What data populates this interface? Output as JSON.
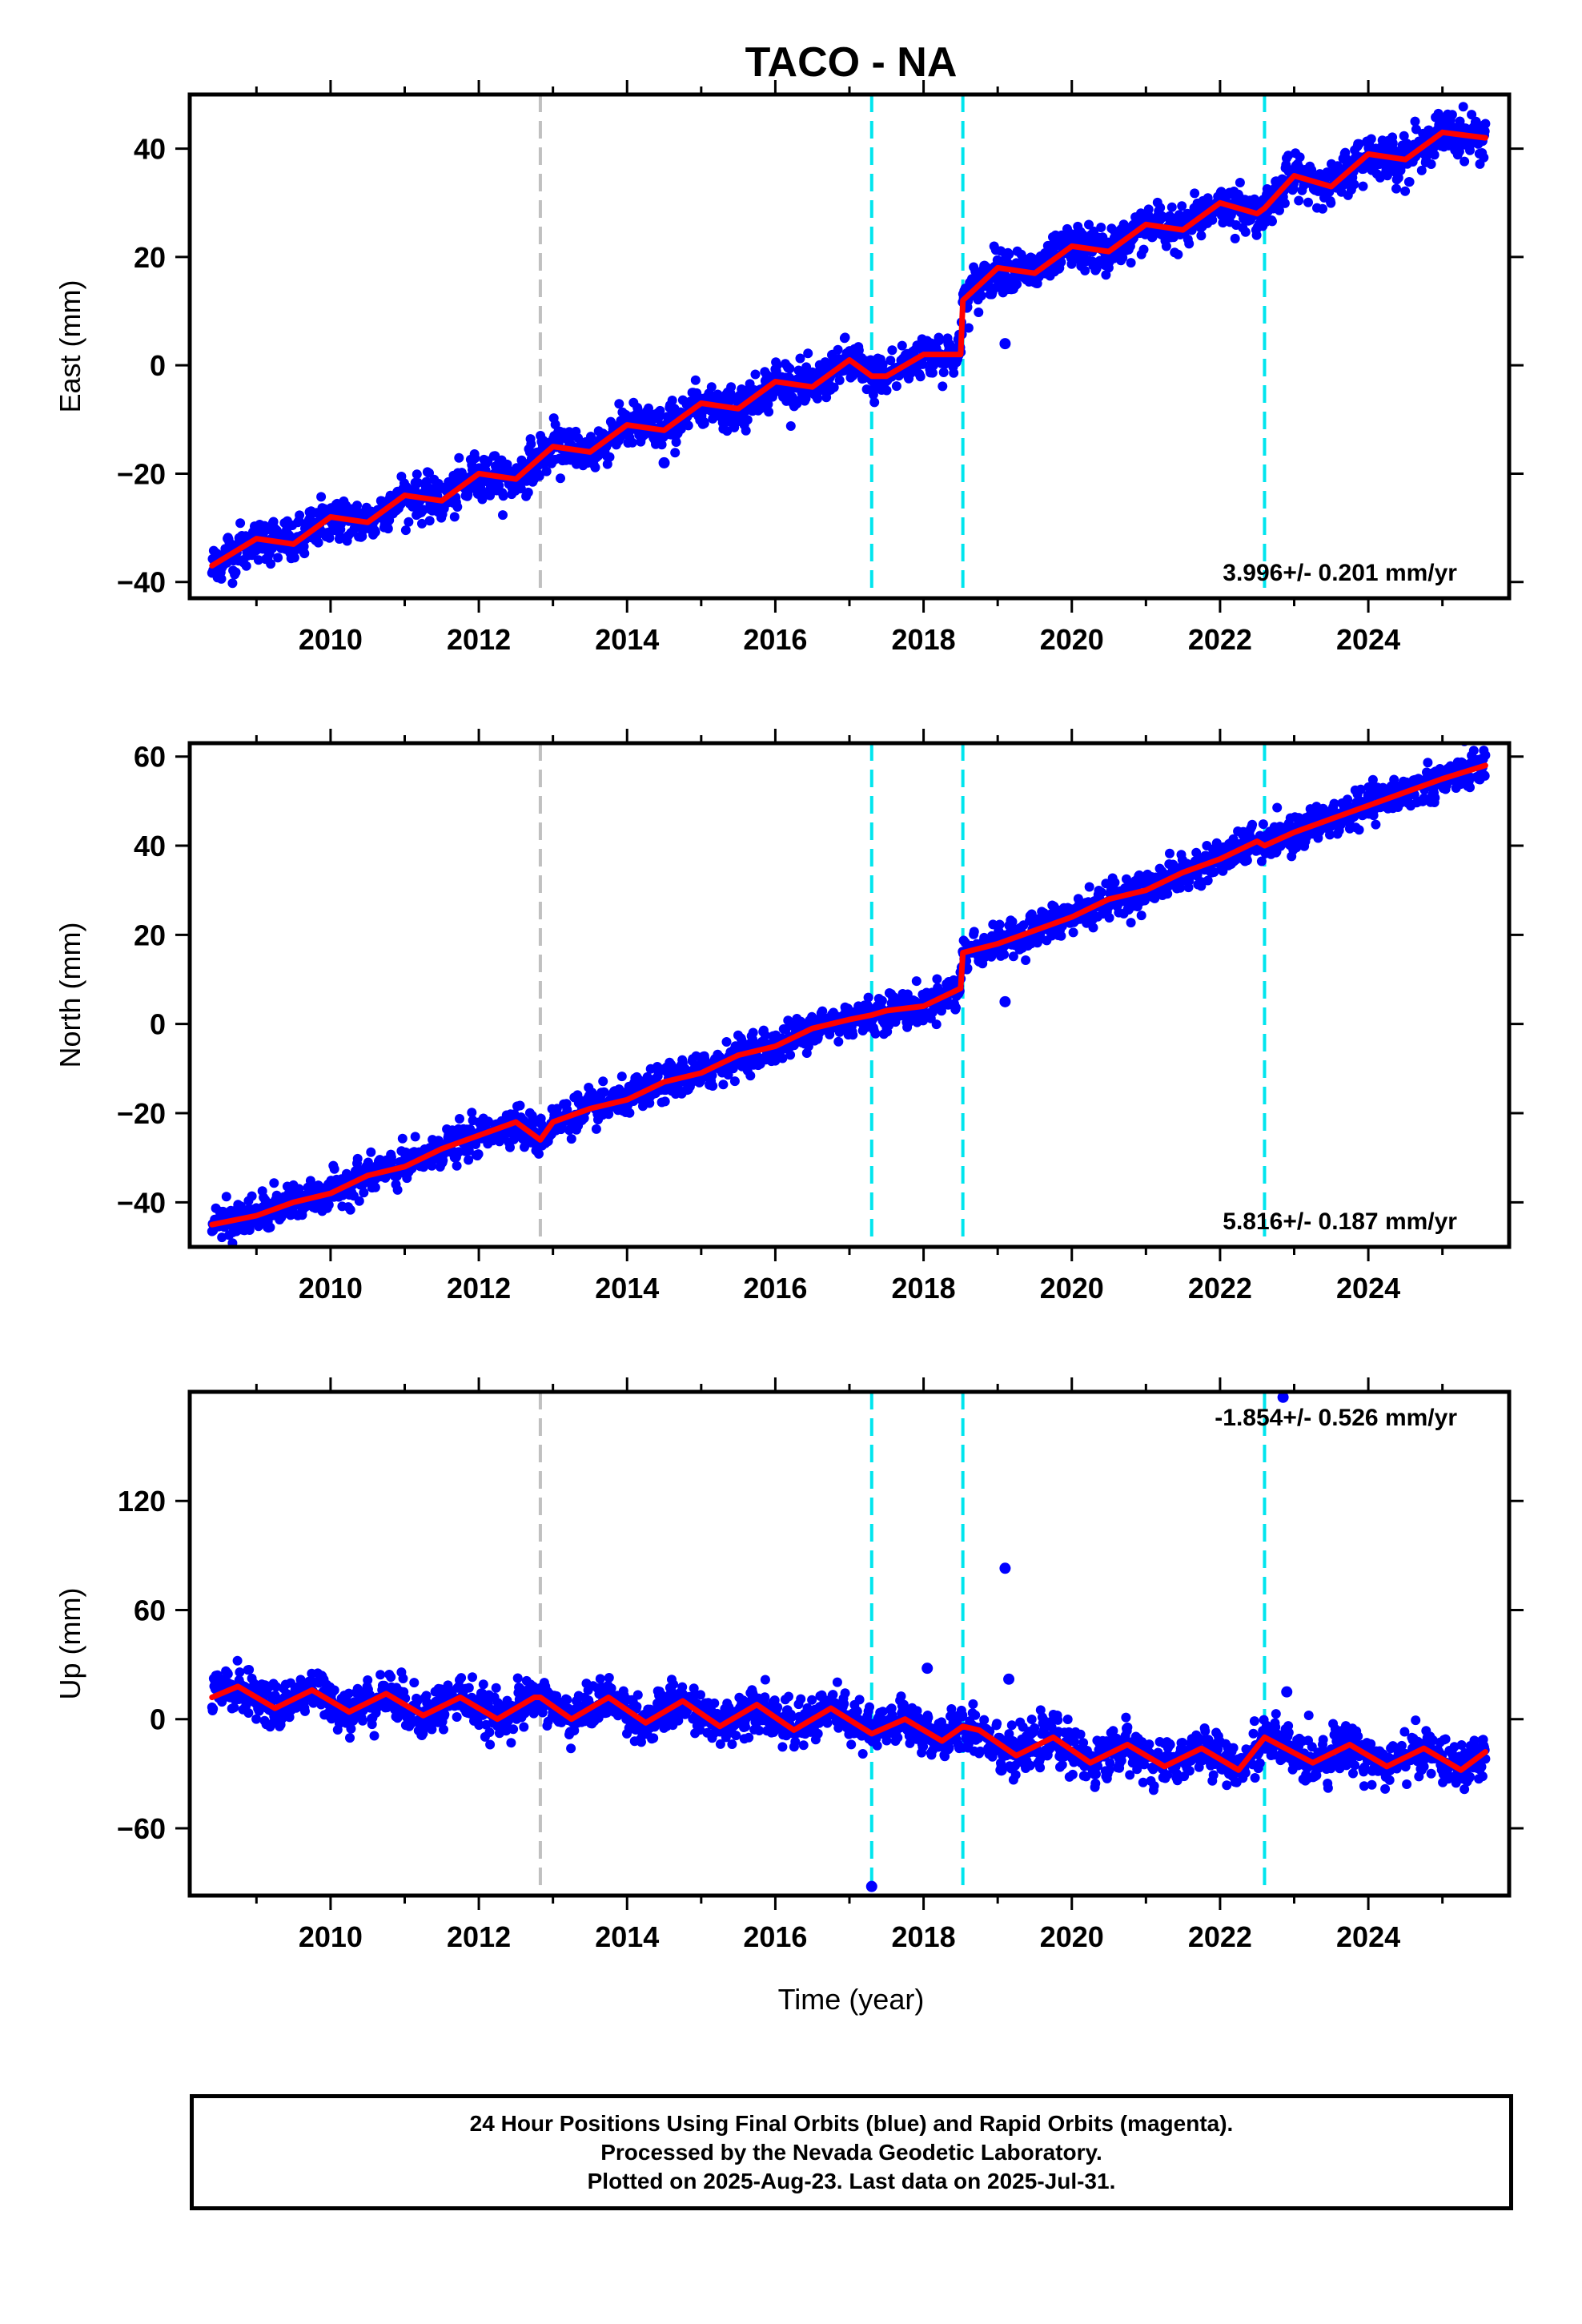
{
  "chart_data": {
    "type": "scatter",
    "title": "TACO - NA",
    "xlabel": "Time (year)",
    "x_range": [
      2008.1,
      2025.9
    ],
    "x_ticks": [
      2010,
      2012,
      2014,
      2016,
      2018,
      2020,
      2022,
      2024
    ],
    "data_span": [
      2008.4,
      2025.58
    ],
    "events": [
      {
        "year": 2012.83,
        "color": "#c0c0c0"
      },
      {
        "year": 2017.3,
        "color": "#00e5ee"
      },
      {
        "year": 2018.53,
        "color": "#00e5ee"
      },
      {
        "year": 2022.6,
        "color": "#00e5ee"
      }
    ],
    "colors": {
      "observations": "#0000ff",
      "model": "#ff0000",
      "axes": "#000000"
    },
    "panels": [
      {
        "id": "east",
        "ylabel": "East (mm)",
        "ylim": [
          -43,
          50
        ],
        "y_ticks": [
          -40,
          -20,
          0,
          20,
          40
        ],
        "rate_label": "3.996+/- 0.201 mm/yr",
        "rate_position": "bottom-right",
        "model_points": [
          [
            2008.4,
            -37
          ],
          [
            2009.0,
            -32
          ],
          [
            2009.5,
            -33
          ],
          [
            2010.0,
            -28
          ],
          [
            2010.5,
            -29
          ],
          [
            2011.0,
            -24
          ],
          [
            2011.5,
            -25
          ],
          [
            2012.0,
            -20
          ],
          [
            2012.5,
            -21
          ],
          [
            2012.83,
            -17
          ],
          [
            2013.0,
            -15
          ],
          [
            2013.5,
            -16
          ],
          [
            2014.0,
            -11
          ],
          [
            2014.5,
            -12
          ],
          [
            2015.0,
            -7
          ],
          [
            2015.5,
            -8
          ],
          [
            2016.0,
            -3
          ],
          [
            2016.5,
            -4
          ],
          [
            2017.0,
            1
          ],
          [
            2017.3,
            -2
          ],
          [
            2017.5,
            -2
          ],
          [
            2018.0,
            2
          ],
          [
            2018.5,
            2
          ],
          [
            2018.53,
            12
          ],
          [
            2019.0,
            18
          ],
          [
            2019.5,
            17
          ],
          [
            2020.0,
            22
          ],
          [
            2020.5,
            21
          ],
          [
            2021.0,
            26
          ],
          [
            2021.5,
            25
          ],
          [
            2022.0,
            30
          ],
          [
            2022.5,
            28
          ],
          [
            2022.6,
            29
          ],
          [
            2023.0,
            35
          ],
          [
            2023.5,
            33
          ],
          [
            2024.0,
            39
          ],
          [
            2024.5,
            38
          ],
          [
            2025.0,
            43
          ],
          [
            2025.58,
            42
          ]
        ],
        "scatter_sd": 1.8,
        "outliers": [
          [
            2014.5,
            -18
          ],
          [
            2019.1,
            4
          ]
        ]
      },
      {
        "id": "north",
        "ylabel": "North (mm)",
        "ylim": [
          -50,
          63
        ],
        "y_ticks": [
          -40,
          -20,
          0,
          20,
          40,
          60
        ],
        "rate_label": "5.816+/- 0.187 mm/yr",
        "rate_position": "bottom-right",
        "model_points": [
          [
            2008.4,
            -45
          ],
          [
            2009.0,
            -43
          ],
          [
            2009.5,
            -40
          ],
          [
            2010.0,
            -38
          ],
          [
            2010.5,
            -34
          ],
          [
            2011.0,
            -32
          ],
          [
            2011.5,
            -28
          ],
          [
            2012.0,
            -25
          ],
          [
            2012.5,
            -22
          ],
          [
            2012.83,
            -26
          ],
          [
            2013.0,
            -22
          ],
          [
            2013.5,
            -19
          ],
          [
            2014.0,
            -17
          ],
          [
            2014.5,
            -13
          ],
          [
            2015.0,
            -11
          ],
          [
            2015.5,
            -7
          ],
          [
            2016.0,
            -5
          ],
          [
            2016.5,
            -1
          ],
          [
            2017.0,
            1
          ],
          [
            2017.3,
            2
          ],
          [
            2017.5,
            3
          ],
          [
            2018.0,
            4
          ],
          [
            2018.5,
            8
          ],
          [
            2018.53,
            16
          ],
          [
            2019.0,
            18
          ],
          [
            2019.5,
            21
          ],
          [
            2020.0,
            24
          ],
          [
            2020.5,
            28
          ],
          [
            2021.0,
            30
          ],
          [
            2021.5,
            34
          ],
          [
            2022.0,
            37
          ],
          [
            2022.5,
            41
          ],
          [
            2022.6,
            40
          ],
          [
            2023.0,
            43
          ],
          [
            2023.5,
            46
          ],
          [
            2024.0,
            49
          ],
          [
            2024.5,
            52
          ],
          [
            2025.0,
            55
          ],
          [
            2025.58,
            58
          ]
        ],
        "scatter_sd": 1.8,
        "outliers": [
          [
            2019.1,
            5
          ]
        ]
      },
      {
        "id": "up",
        "ylabel": "Up (mm)",
        "ylim": [
          -97,
          180
        ],
        "y_ticks": [
          -60,
          0,
          60,
          120
        ],
        "rate_label": "-1.854+/- 0.526 mm/yr",
        "rate_position": "top-right",
        "model_points": [
          [
            2008.4,
            12
          ],
          [
            2008.75,
            18
          ],
          [
            2009.25,
            6
          ],
          [
            2009.75,
            16
          ],
          [
            2010.25,
            4
          ],
          [
            2010.75,
            14
          ],
          [
            2011.25,
            2
          ],
          [
            2011.75,
            12
          ],
          [
            2012.25,
            0
          ],
          [
            2012.75,
            12
          ],
          [
            2012.83,
            12
          ],
          [
            2013.25,
            0
          ],
          [
            2013.75,
            12
          ],
          [
            2014.25,
            -2
          ],
          [
            2014.75,
            10
          ],
          [
            2015.25,
            -4
          ],
          [
            2015.75,
            8
          ],
          [
            2016.25,
            -6
          ],
          [
            2016.75,
            6
          ],
          [
            2017.3,
            -8
          ],
          [
            2017.75,
            0
          ],
          [
            2018.25,
            -12
          ],
          [
            2018.53,
            -4
          ],
          [
            2018.75,
            -6
          ],
          [
            2019.25,
            -20
          ],
          [
            2019.75,
            -10
          ],
          [
            2020.25,
            -24
          ],
          [
            2020.75,
            -14
          ],
          [
            2021.25,
            -26
          ],
          [
            2021.75,
            -16
          ],
          [
            2022.25,
            -28
          ],
          [
            2022.6,
            -10
          ],
          [
            2023.25,
            -24
          ],
          [
            2023.75,
            -14
          ],
          [
            2024.25,
            -26
          ],
          [
            2024.75,
            -16
          ],
          [
            2025.25,
            -28
          ],
          [
            2025.58,
            -18
          ]
        ],
        "scatter_sd": 5.5,
        "outliers": [
          [
            2017.3,
            -92
          ],
          [
            2018.05,
            28
          ],
          [
            2019.1,
            83
          ],
          [
            2019.15,
            22
          ],
          [
            2019.05,
            -28
          ],
          [
            2022.9,
            15
          ],
          [
            2022.85,
            177
          ]
        ]
      }
    ]
  },
  "footer": {
    "line1": "24 Hour Positions Using Final Orbits (blue) and Rapid Orbits (magenta).",
    "line2": "Processed by the Nevada Geodetic Laboratory.",
    "line3": "Plotted on 2025-Aug-23. Last data on 2025-Jul-31."
  }
}
